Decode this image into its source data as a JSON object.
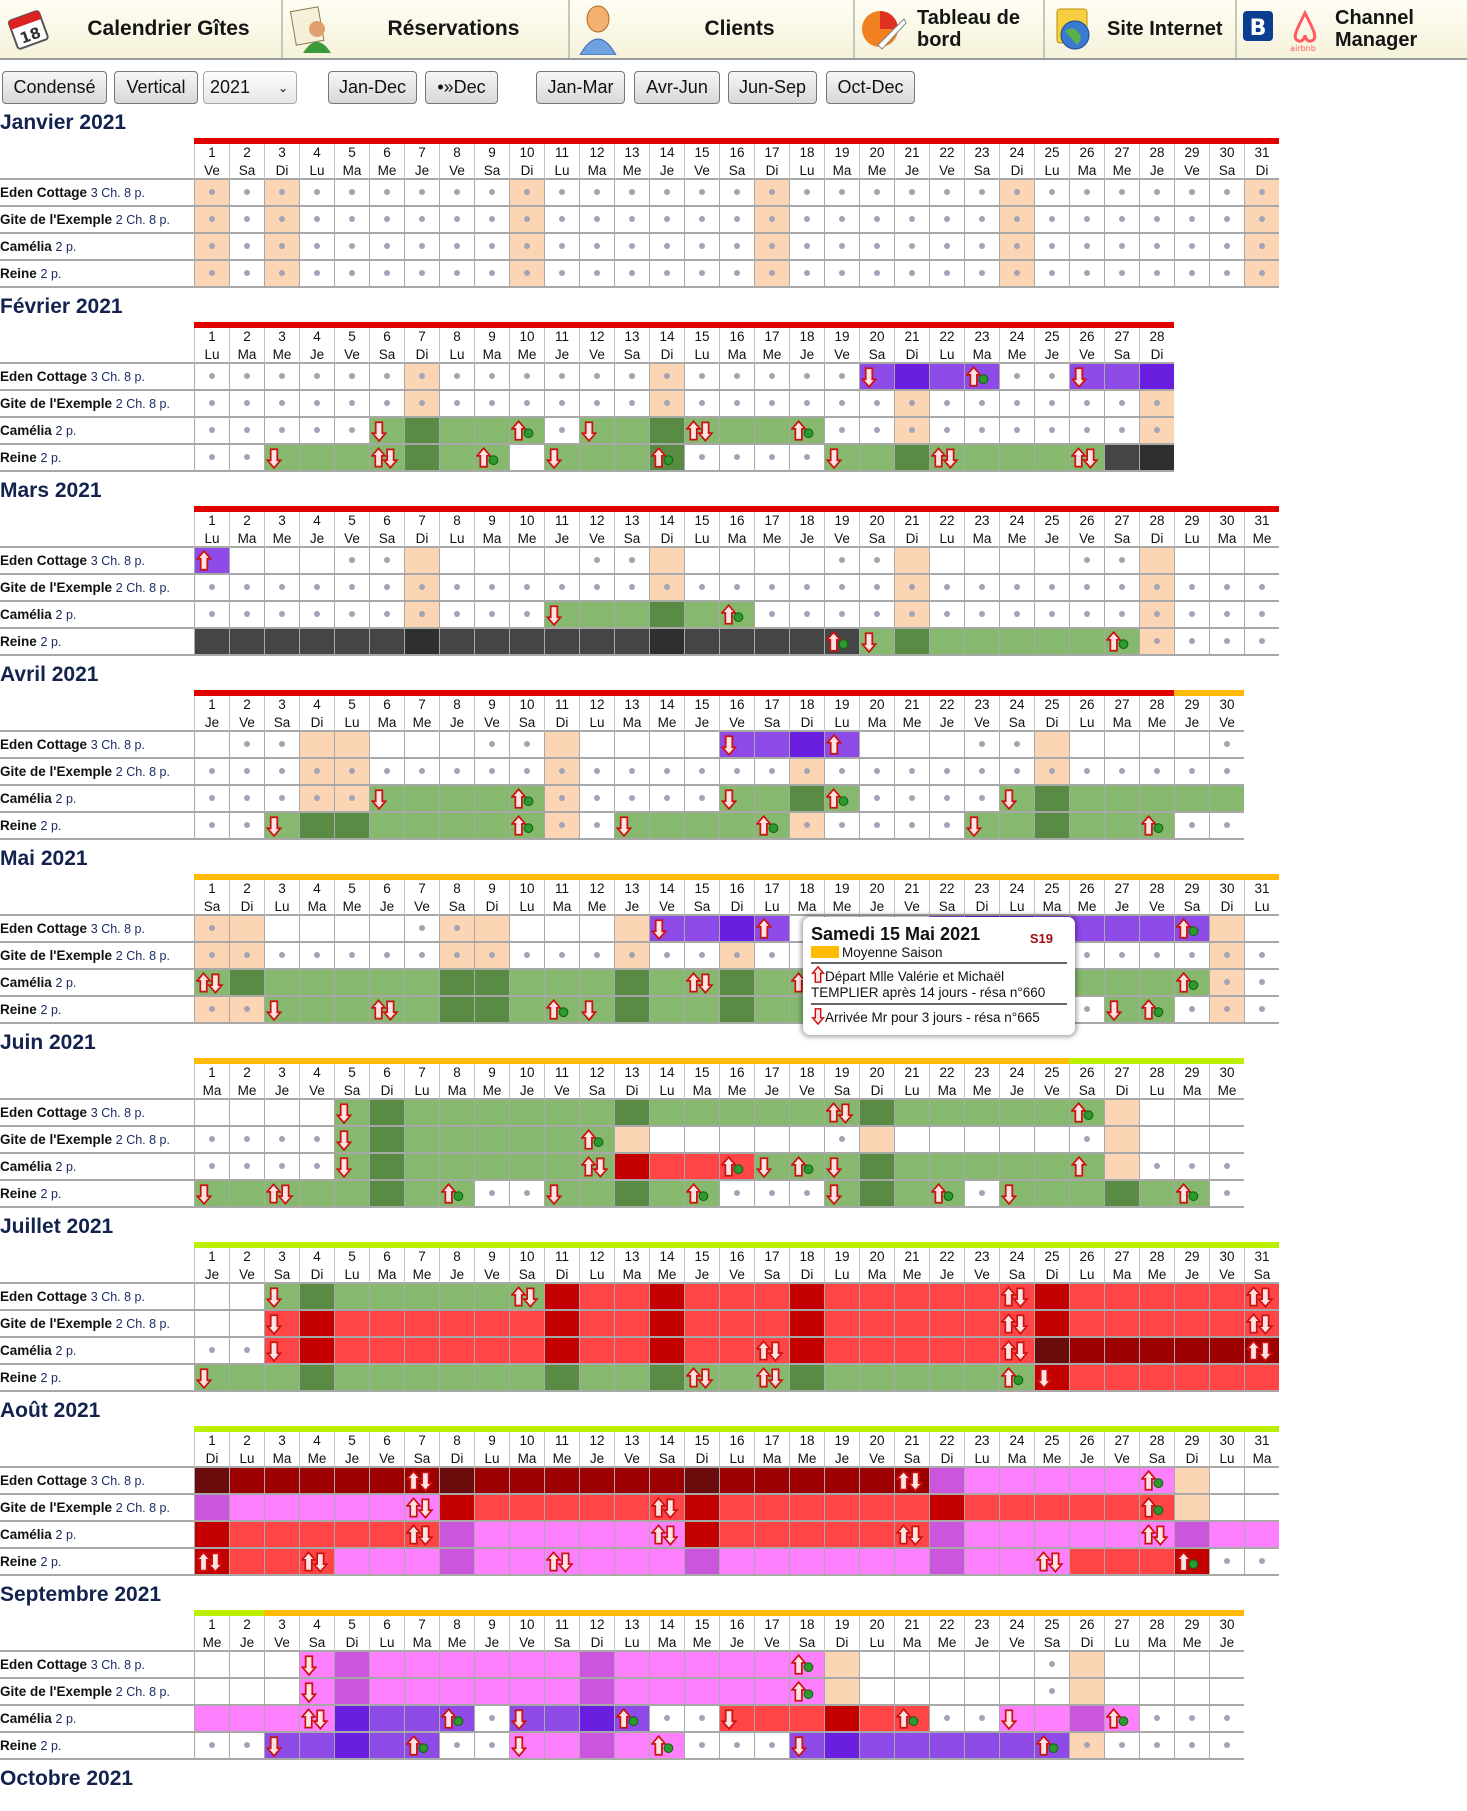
{
  "tabs": [
    {
      "label": "Calendrier Gîtes",
      "icon": "calendar-icon"
    },
    {
      "label": "Réservations",
      "icon": "reservations-icon"
    },
    {
      "label": "Clients",
      "icon": "client-icon"
    },
    {
      "label": "Tableau de bord",
      "icon": "dashboard-chart-icon"
    },
    {
      "label": "Site Internet",
      "icon": "website-globe-icon"
    },
    {
      "label": "Channel Manager",
      "icon": "booking-airbnb-icon"
    }
  ],
  "toolbar": {
    "condensed": "Condensé",
    "vertical": "Vertical",
    "year": "2021",
    "jan_dec": "Jan-Dec",
    "to_dec": "•»Dec",
    "jan_mar": "Jan-Mar",
    "avr_jun": "Avr-Jun",
    "jun_sep": "Jun-Sep",
    "oct_dec": "Oct-Dec"
  },
  "weekdays": [
    "Lu",
    "Ma",
    "Me",
    "Je",
    "Ve",
    "Sa",
    "Di"
  ],
  "rooms": [
    {
      "name": "Eden Cottage",
      "info": "3 Ch. 8 p."
    },
    {
      "name": "Gite de l'Exemple",
      "info": "2 Ch. 8 p."
    },
    {
      "name": "Camélia",
      "info": "2 p."
    },
    {
      "name": "Reine",
      "info": "2 p."
    }
  ],
  "season_colors": {
    "high": "#e00000",
    "mid": "#ffbb00",
    "low": "#bbee00"
  },
  "legend_cell_codes": {
    ".": "available",
    "_": "empty",
    "p": "holiday/sunday",
    "q": "holiday/sunday empty",
    "g": "#86b96e",
    "G": "#5a8b45",
    "v": "#8e4be8",
    "V": "#6a1ee0",
    "k": "#454545",
    "K": "#2f2f2f",
    "r": "#ff4545",
    "R": "#c40000",
    "m": "#9c0000",
    "M": "#6a0c0c",
    "i": "#ff80ff",
    "I": "#cc55dd",
    "suffix_a": "arrival",
    "suffix_d": "departure",
    "suffix_u": "departure",
    "suffix_x": "departure+arrival"
  },
  "months": [
    {
      "title": "Janvier 2021",
      "first_weekday": 4,
      "days": 31,
      "season": [
        [
          "high",
          31
        ]
      ],
      "rows": [
        "p . p . . . . . . p . . . . . . p . . . . . . p . . . . . . p",
        "p . p . . . . . . p . . . . . . p . . . . . . p . . . . . . p",
        "p . p . . . . . . p . . . . . . p . . . . . . p . . . . . . p",
        "p . p . . . . . . p . . . . . . p . . . . . . p . . . . . . p"
      ]
    },
    {
      "title": "Février 2021",
      "first_weekday": 0,
      "days": 28,
      "season": [
        [
          "high",
          28
        ]
      ],
      "rows": [
        ". . . . . . p . . . . . . p . . . . . va V v vd . . va v V",
        ". . . . . . p . . . . . . p . . . . . . p . . . . . . p",
        ". . . . . ga G g g gd . ga g G gx g g gd . . p . . . . . . p",
        ". . ga g g gx G g gd _ ga g g Gd . . . . ga g G gx g g g gx k K"
      ]
    },
    {
      "title": "Mars 2021",
      "first_weekday": 0,
      "days": 31,
      "season": [
        [
          "high",
          31
        ]
      ],
      "rows": [
        "vu _ _ _ . . q _ _ _ _ . . q _ _ _ _ . . q _ _ _ _ . . q _ _ _",
        ". . . . . . p . . . . . . p . . . . . . p . . . . . . p . . .",
        ". . . . . . p . . . ga g g G g gd . . . . p . . . . . . p . . .",
        "k k k k k k K k k k k k k K k k k k kd ga G g g g g g gd p . . ."
      ]
    },
    {
      "title": "Avril 2021",
      "first_weekday": 3,
      "days": 30,
      "season": [
        [
          "high",
          28
        ],
        [
          "mid",
          2
        ]
      ],
      "rows": [
        "_ . . q q _ _ _ . . q _ _ _ _ va v V vu _ _ _ . . q _ _ _ _ .",
        ". . . p p . . . . . p . . . . . . p . . . . . . p . . . . .",
        ". . . p p ga g g g gd p . . . . ga g G gd . . . . ga G g g g g g",
        ". . ga G G g g g g gd p . ga g g g gd p . . . . ga g G g g gd . ."
      ]
    },
    {
      "title": "Mai 2021",
      "first_weekday": 5,
      "days": 31,
      "season": [
        [
          "mid",
          31
        ]
      ],
      "rows": [
        "p q _ _ _ _ . p q _ _ _ q va v V vu _ _ _ . va V V v v v v vd q _",
        "p p . . . . . p p . . . p . . p . . . . . . p p . . . . . p .",
        "gx G g g g g g G G g g g G g gx G g gx g g g gx k k kx g g g gd p .",
        "p p ga g g gx g G G g gd ga G g g G g g g g g g g g . . ga gd . p ."
      ]
    },
    {
      "title": "Juin 2021",
      "first_weekday": 1,
      "days": 30,
      "season": [
        [
          "mid",
          25
        ],
        [
          "low",
          5
        ]
      ],
      "rows": [
        "_ _ _ _ ga G g g g g g g G g g g g g gx G g g g g g gd q _ _ _",
        ". . . . ga G g g g g g gd q _ _ _ _ _ . q _ _ _ _ _ . q _ _ _",
        ". . . . ga G g g g g g gx R r r rd ga gd ga G g g g g g gu q . . .",
        "ga g gx g g G g gd . . ga g G g gd . . . ga G g gd . ga g g G g gd ."
      ]
    },
    {
      "title": "Juillet 2021",
      "first_weekday": 3,
      "days": 31,
      "season": [
        [
          "low",
          31
        ]
      ],
      "rows": [
        "_ _ ga G g g g g g gx R r r R r r r R r r r r r rx R r r r r r rx",
        "_ _ ra R r r r r r r R r r R r r r R r r r r r rx R r r r r r rx",
        ". . ra R r r r r r r R r r R r r rx R r r r r r rx M m m m m m mx",
        "ga g g G g g g g g g G g g G gx g gx G g g g g g gd Ra r r r r r r"
      ]
    },
    {
      "title": "Août 2021",
      "first_weekday": 6,
      "days": 31,
      "season": [
        [
          "low",
          31
        ]
      ],
      "rows": [
        "M m m m m m mx M m m m m m m M m m m m m mx I i i i i i id q _ _",
        "I i i i i i ix R r r r r r rx R r r r r r r R r r r r r rd q _ _",
        "R r r r r r rx I i i i i i ix R r r r r r rx I i i i i i ix I i i",
        "Rx r r rx i i i I i i ix i i i I i i i i i i I i i ix r r r Rd . ."
      ]
    },
    {
      "title": "Septembre 2021",
      "first_weekday": 2,
      "days": 30,
      "season": [
        [
          "low",
          2
        ],
        [
          "mid",
          28
        ]
      ],
      "rows": [
        "_ _ _ ia I i i i i i i I i i i i i id q _ _ _ _ _ . q _ _ _ _",
        "_ _ _ ia I i i i i i i I i i i i i id q _ _ _ _ _ . q _ _ _ _",
        "i i i ix V v v vd . va v V vd . . ra r r R r rd . . ia i I id . . .",
        ". . va v V v vd . . ia i I i id . . . va V v v v v v vd p . . . ."
      ]
    },
    {
      "title": "Octobre 2021",
      "first_weekday": 4,
      "days": 31,
      "season": [],
      "rows": []
    }
  ],
  "tooltip": {
    "date": "Samedi 15 Mai 2021",
    "week": "S19",
    "season": "Moyenne Saison",
    "season_color": "#ffbb00",
    "departure": "Départ Mlle Valérie et Michaël TEMPLIER après 14 jours - résa n°660",
    "arrival": "Arrivée Mr pour 3 jours - résa n°665"
  }
}
